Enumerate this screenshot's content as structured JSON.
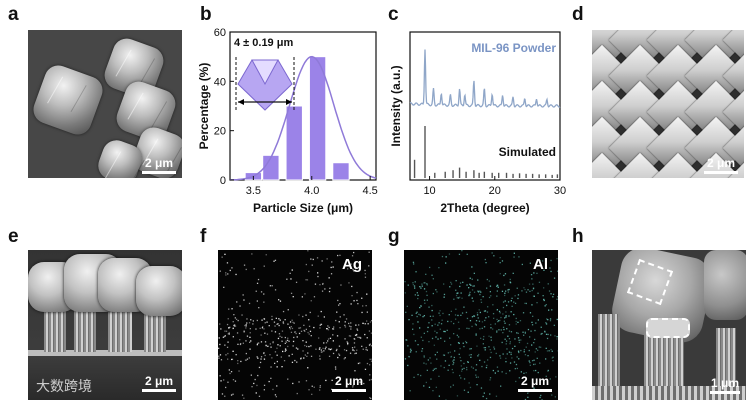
{
  "panel_labels": {
    "a": "a",
    "b": "b",
    "c": "c",
    "d": "d",
    "e": "e",
    "f": "f",
    "g": "g",
    "h": "h"
  },
  "scale_bars": {
    "a": "2 μm",
    "d": "2 μm",
    "e": "2 μm",
    "f": "2 μm",
    "g": "2 μm",
    "h": "1 μm"
  },
  "eds_labels": {
    "f": "Ag",
    "g": "Al"
  },
  "watermark": "大数跨境",
  "colors": {
    "purple": "#9b83e8",
    "purple_line": "#8f7ad8",
    "blue_line": "#8fa6c8",
    "blue_text": "#7a94c4",
    "sim_line": "#555555",
    "ag_dot": "#e8e8e8",
    "al_dot": "#5fb3a8"
  },
  "chart_data": [
    {
      "type": "bar",
      "panel": "b",
      "title": "",
      "xlabel": "Particle Size (μm)",
      "ylabel": "Percentage (%)",
      "annotation": "4 ± 0.19 μm",
      "x_centers": [
        3.5,
        3.65,
        3.85,
        4.05,
        4.25
      ],
      "bar_width": 0.14,
      "values": [
        3,
        10,
        30,
        50,
        7
      ],
      "fit_curve": {
        "type": "gaussian",
        "mean": 4.0,
        "sigma": 0.19,
        "peak": 50
      },
      "xlim": [
        3.3,
        4.55
      ],
      "ylim": [
        0,
        60
      ],
      "xticks": [
        "3.5",
        "4.0",
        "4.5"
      ],
      "xtick_values": [
        3.5,
        4.0,
        4.5
      ],
      "yticks": [
        "0",
        "20",
        "40",
        "60"
      ],
      "ytick_values": [
        0,
        20,
        40,
        60
      ]
    },
    {
      "type": "line",
      "panel": "c",
      "title": "",
      "xlabel": "2Theta (degree)",
      "ylabel": "Intensity (a.u.)",
      "series": [
        {
          "name": "MIL-96 Powder",
          "peaks": [
            [
              9.3,
              1.0
            ],
            [
              10.6,
              0.28
            ],
            [
              11.8,
              0.22
            ],
            [
              13.2,
              0.18
            ],
            [
              14.6,
              0.3
            ],
            [
              15.4,
              0.2
            ],
            [
              16.8,
              0.45
            ],
            [
              18.4,
              0.3
            ],
            [
              19.6,
              0.22
            ],
            [
              21.2,
              0.2
            ],
            [
              22.8,
              0.16
            ],
            [
              24.6,
              0.14
            ],
            [
              26.4,
              0.14
            ],
            [
              28.0,
              0.12
            ]
          ]
        },
        {
          "name": "Simulated",
          "peaks": [
            [
              7.7,
              0.35
            ],
            [
              9.3,
              1.0
            ],
            [
              10.8,
              0.1
            ],
            [
              12.4,
              0.12
            ],
            [
              13.6,
              0.15
            ],
            [
              14.6,
              0.2
            ],
            [
              15.6,
              0.12
            ],
            [
              16.8,
              0.15
            ],
            [
              17.6,
              0.1
            ],
            [
              18.4,
              0.12
            ],
            [
              19.6,
              0.1
            ],
            [
              20.6,
              0.1
            ],
            [
              21.8,
              0.1
            ],
            [
              22.8,
              0.08
            ],
            [
              23.8,
              0.09
            ],
            [
              24.8,
              0.08
            ],
            [
              25.8,
              0.08
            ],
            [
              26.8,
              0.07
            ],
            [
              27.8,
              0.07
            ],
            [
              28.8,
              0.06
            ],
            [
              29.6,
              0.07
            ]
          ]
        }
      ],
      "xlim": [
        7,
        30
      ],
      "xticks": [
        "10",
        "20",
        "30"
      ],
      "xtick_values": [
        10,
        20,
        30
      ]
    }
  ]
}
